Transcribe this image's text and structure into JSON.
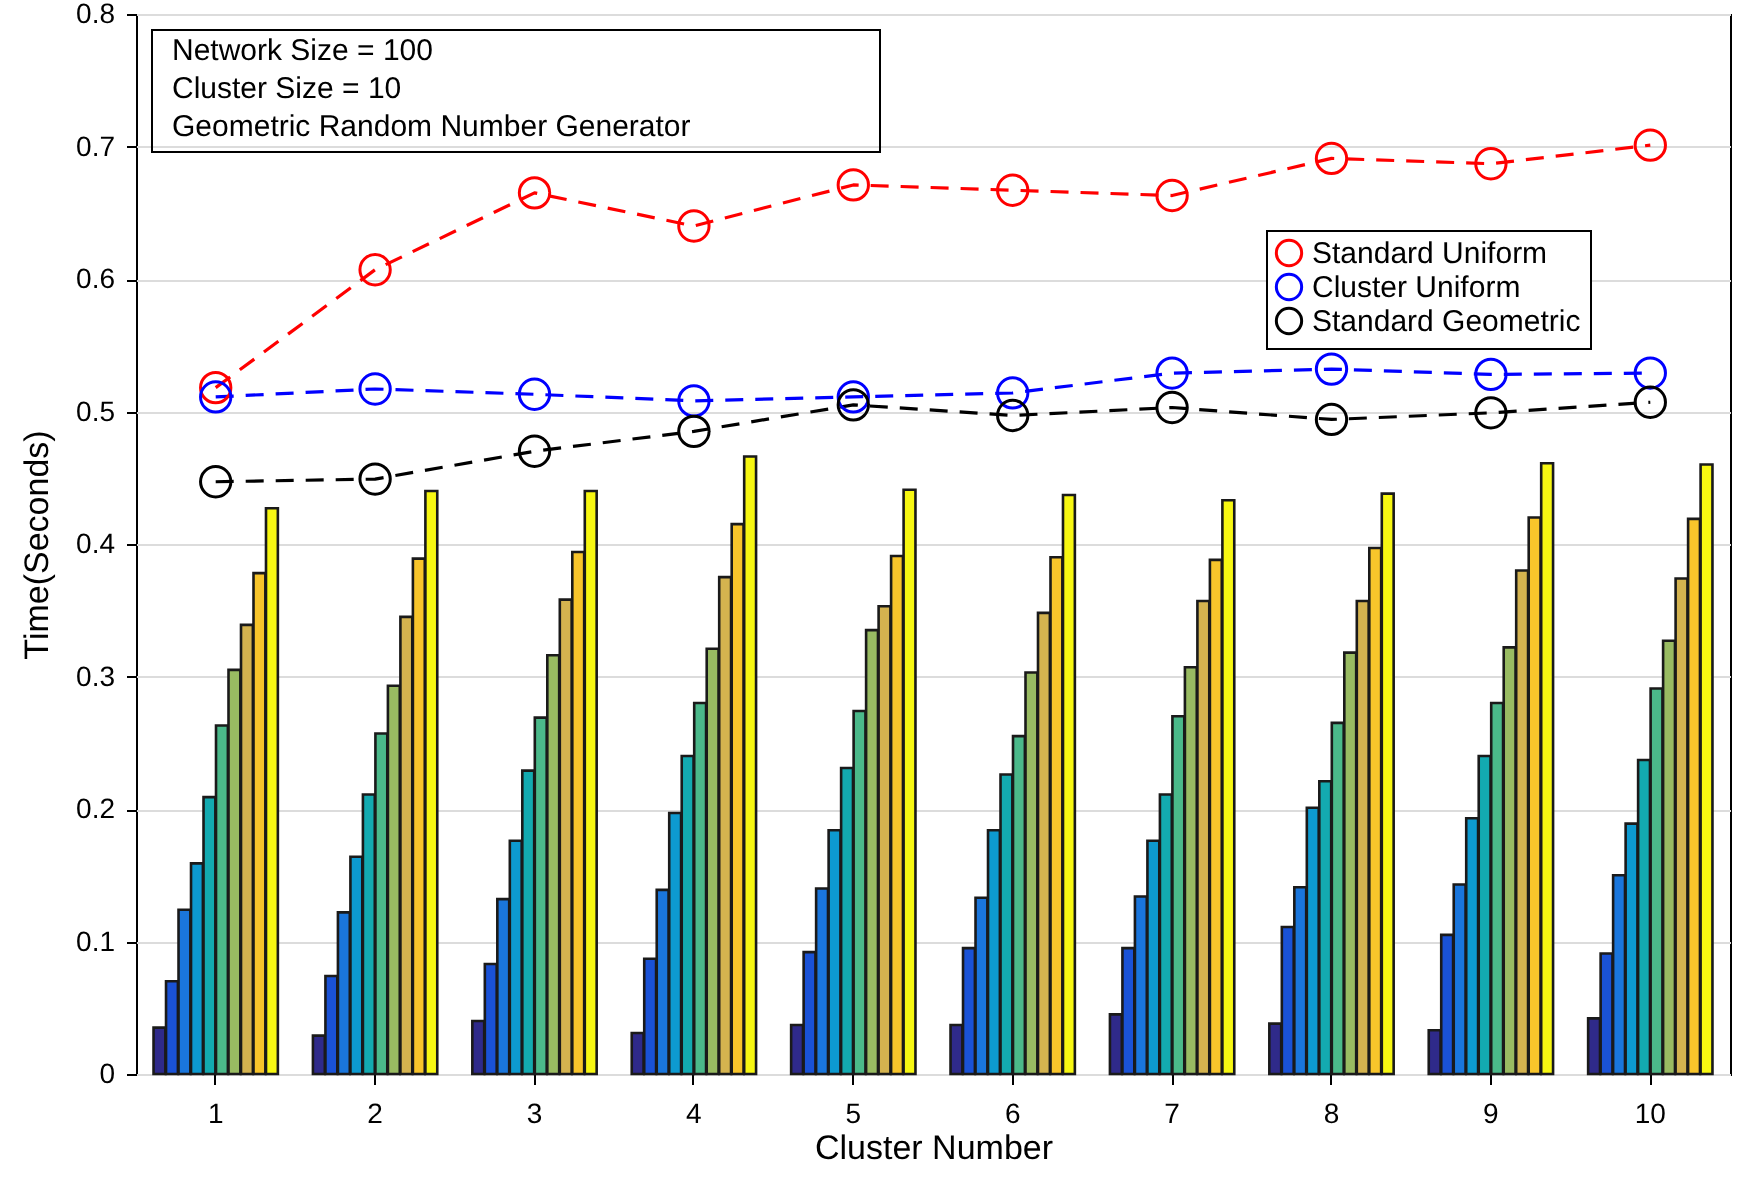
{
  "chart_data": {
    "type": "bar",
    "xlabel": "Cluster Number",
    "ylabel": "Time(Seconds)",
    "categories": [
      "1",
      "2",
      "3",
      "4",
      "5",
      "6",
      "7",
      "8",
      "9",
      "10"
    ],
    "ylim": [
      0,
      0.8
    ],
    "yticks": [
      0,
      0.1,
      0.2,
      0.3,
      0.4,
      0.5,
      0.6,
      0.7,
      0.8
    ],
    "grid": "y",
    "legend": "top right",
    "annotations": [
      "Network Size = 100",
      "Cluster Size = 10",
      "Geometric Random Number Generator"
    ],
    "series": [
      {
        "color": "#2f2a8a",
        "values": [
          0.035,
          0.029,
          0.04,
          0.031,
          0.037,
          0.037,
          0.045,
          0.038,
          0.033,
          0.042
        ]
      },
      {
        "color": "#1a52d6",
        "values": [
          0.07,
          0.074,
          0.083,
          0.087,
          0.092,
          0.095,
          0.095,
          0.111,
          0.105,
          0.091
        ]
      },
      {
        "color": "#1a76dc",
        "values": [
          0.124,
          0.122,
          0.132,
          0.139,
          0.14,
          0.133,
          0.134,
          0.141,
          0.143,
          0.15
        ]
      },
      {
        "color": "#0d9ad0",
        "values": [
          0.159,
          0.164,
          0.176,
          0.197,
          0.184,
          0.184,
          0.176,
          0.201,
          0.193,
          0.189
        ]
      },
      {
        "color": "#13aab0",
        "values": [
          0.209,
          0.211,
          0.229,
          0.24,
          0.231,
          0.226,
          0.211,
          0.221,
          0.24,
          0.237
        ]
      },
      {
        "color": "#4bb98a",
        "values": [
          0.263,
          0.257,
          0.269,
          0.28,
          0.274,
          0.255,
          0.27,
          0.265,
          0.28,
          0.291
        ]
      },
      {
        "color": "#99bb62",
        "values": [
          0.305,
          0.293,
          0.316,
          0.321,
          0.335,
          0.303,
          0.307,
          0.318,
          0.322,
          0.327
        ]
      },
      {
        "color": "#d4b34f",
        "values": [
          0.339,
          0.345,
          0.358,
          0.375,
          0.353,
          0.348,
          0.357,
          0.357,
          0.38,
          0.374
        ]
      },
      {
        "color": "#f8c52b",
        "values": [
          0.378,
          0.389,
          0.394,
          0.415,
          0.391,
          0.39,
          0.388,
          0.397,
          0.42,
          0.419
        ]
      },
      {
        "color": "#f7f712",
        "values": [
          0.427,
          0.44,
          0.44,
          0.466,
          0.441,
          0.437,
          0.433,
          0.438,
          0.461,
          0.46
        ]
      },
      {
        "type": "line",
        "name": "Standard Uniform",
        "color": "#ff0000",
        "marker": "circle",
        "line_style": "dashed",
        "values": [
          0.518,
          0.607,
          0.665,
          0.64,
          0.671,
          0.667,
          0.663,
          0.691,
          0.687,
          0.701
        ]
      },
      {
        "type": "line",
        "name": "Cluster Uniform",
        "color": "#0000ff",
        "marker": "circle",
        "line_style": "dashed",
        "values": [
          0.511,
          0.517,
          0.513,
          0.508,
          0.511,
          0.514,
          0.529,
          0.532,
          0.528,
          0.529
        ]
      },
      {
        "type": "line",
        "name": "Standard Geometric",
        "color": "#000000",
        "marker": "circle",
        "line_style": "dashed",
        "values": [
          0.447,
          0.449,
          0.47,
          0.485,
          0.505,
          0.497,
          0.503,
          0.494,
          0.499,
          0.507
        ]
      }
    ]
  }
}
